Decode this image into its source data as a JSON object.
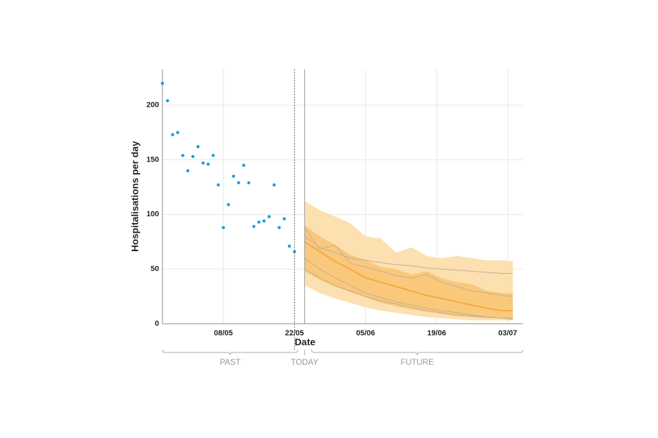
{
  "chart_data": {
    "type": "forecast",
    "x_label": "Date",
    "y_label": "Hospitalisations per day",
    "xlim": [
      "26/04",
      "06/07"
    ],
    "xticks": [
      "08/05",
      "22/05",
      "05/06",
      "19/06",
      "03/07"
    ],
    "ylim": [
      0,
      233
    ],
    "yticks": [
      0,
      50,
      100,
      150,
      200
    ],
    "grid": true,
    "observed": {
      "color": "#1a9fd8",
      "x": [
        "26/04",
        "27/04",
        "28/04",
        "29/04",
        "30/04",
        "01/05",
        "02/05",
        "03/05",
        "04/05",
        "05/05",
        "06/05",
        "07/05",
        "08/05",
        "09/05",
        "10/05",
        "11/05",
        "12/05",
        "13/05",
        "14/05",
        "15/05",
        "16/05",
        "17/05",
        "18/05",
        "19/05",
        "20/05",
        "21/05",
        "22/05"
      ],
      "values": [
        220,
        204,
        173,
        175,
        154,
        140,
        153,
        162,
        147,
        146,
        154,
        127,
        88,
        109,
        135,
        129,
        145,
        129,
        89,
        93,
        94,
        98,
        127,
        88,
        96,
        71,
        66
      ]
    },
    "forecast": {
      "x": [
        "24/05",
        "27/05",
        "30/05",
        "02/06",
        "05/06",
        "08/06",
        "11/06",
        "14/06",
        "17/06",
        "20/06",
        "23/06",
        "26/06",
        "29/06",
        "02/07",
        "04/07"
      ],
      "outer_upper": [
        112,
        104,
        98,
        92,
        80,
        78,
        65,
        70,
        62,
        60,
        62,
        60,
        58,
        58,
        57
      ],
      "outer_lower": [
        35,
        28,
        23,
        19,
        15,
        12,
        10,
        8,
        6,
        5,
        4,
        3,
        3,
        3,
        3
      ],
      "inner_upper": [
        90,
        80,
        72,
        63,
        58,
        52,
        50,
        45,
        48,
        42,
        38,
        36,
        30,
        28,
        28
      ],
      "inner_lower": [
        48,
        40,
        34,
        29,
        24,
        19,
        16,
        13,
        11,
        9,
        7,
        6,
        5,
        5,
        4
      ],
      "median": [
        75,
        66,
        57,
        50,
        42,
        38,
        34,
        30,
        26,
        23,
        20,
        17,
        14,
        12,
        12
      ],
      "samples": [
        [
          80,
          70,
          65,
          60,
          58,
          56,
          54,
          53,
          51,
          50,
          49,
          48,
          47,
          46,
          46
        ],
        [
          88,
          68,
          72,
          55,
          52,
          48,
          44,
          42,
          45,
          38,
          34,
          30,
          28,
          26,
          25
        ],
        [
          60,
          50,
          42,
          35,
          28,
          24,
          20,
          17,
          14,
          12,
          10,
          8,
          6,
          5,
          5
        ],
        [
          50,
          42,
          35,
          30,
          25,
          21,
          18,
          15,
          12,
          10,
          8,
          7,
          6,
          5,
          4
        ]
      ],
      "outer_color": "#fde0b0",
      "inner_color": "#f9c87a",
      "median_color": "#f0a030",
      "sample_color": "#bfae9c"
    },
    "annotations": [
      {
        "text": "PAST"
      },
      {
        "text": "TODAY",
        "x": "24/05"
      },
      {
        "text": "FUTURE"
      }
    ]
  }
}
